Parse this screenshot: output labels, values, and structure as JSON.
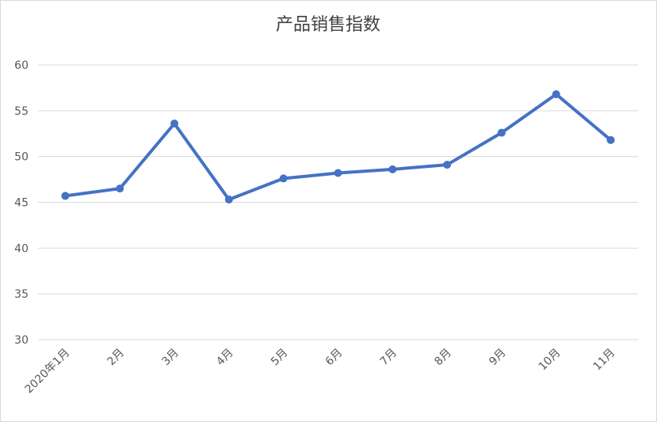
{
  "chart_data": {
    "type": "line",
    "title": "产品销售指数",
    "categories": [
      "2020年1月",
      "2月",
      "3月",
      "4月",
      "5月",
      "6月",
      "7月",
      "8月",
      "9月",
      "10月",
      "11月"
    ],
    "series": [
      {
        "name": "产品销售指数",
        "color": "#4472c4",
        "values": [
          45.7,
          46.5,
          53.6,
          45.3,
          47.6,
          48.2,
          48.6,
          49.1,
          52.6,
          56.8,
          51.8
        ]
      }
    ],
    "ylim": [
      30,
      60
    ],
    "yticks": [
      30,
      35,
      40,
      45,
      50,
      55,
      60
    ],
    "grid": true
  }
}
